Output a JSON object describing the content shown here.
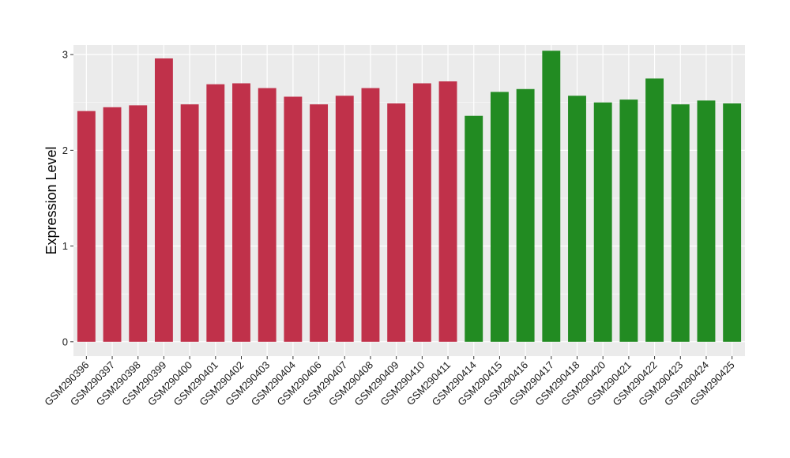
{
  "chart_data": {
    "type": "bar",
    "title": "",
    "xlabel": "",
    "ylabel": "Expression Level",
    "ylim": [
      -0.15,
      3.1
    ],
    "yticks": [
      0,
      1,
      2,
      3
    ],
    "grid": true,
    "legend": "none",
    "colors": {
      "group1": "#C0314A",
      "group2": "#228B22",
      "panel": "#EBEBEB",
      "grid": "#FFFFFF"
    },
    "categories": [
      "GSM290396",
      "GSM290397",
      "GSM290398",
      "GSM290399",
      "GSM290400",
      "GSM290401",
      "GSM290402",
      "GSM290403",
      "GSM290404",
      "GSM290406",
      "GSM290407",
      "GSM290408",
      "GSM290409",
      "GSM290410",
      "GSM290411",
      "GSM290414",
      "GSM290415",
      "GSM290416",
      "GSM290417",
      "GSM290418",
      "GSM290420",
      "GSM290421",
      "GSM290422",
      "GSM290423",
      "GSM290424",
      "GSM290425"
    ],
    "values": [
      2.41,
      2.45,
      2.47,
      2.96,
      2.48,
      2.69,
      2.7,
      2.65,
      2.56,
      2.48,
      2.57,
      2.65,
      2.49,
      2.7,
      2.72,
      2.36,
      2.61,
      2.64,
      3.04,
      2.57,
      2.5,
      2.53,
      2.75,
      2.48,
      2.52,
      2.49
    ],
    "groups": [
      1,
      1,
      1,
      1,
      1,
      1,
      1,
      1,
      1,
      1,
      1,
      1,
      1,
      1,
      1,
      2,
      2,
      2,
      2,
      2,
      2,
      2,
      2,
      2,
      2,
      2
    ]
  }
}
